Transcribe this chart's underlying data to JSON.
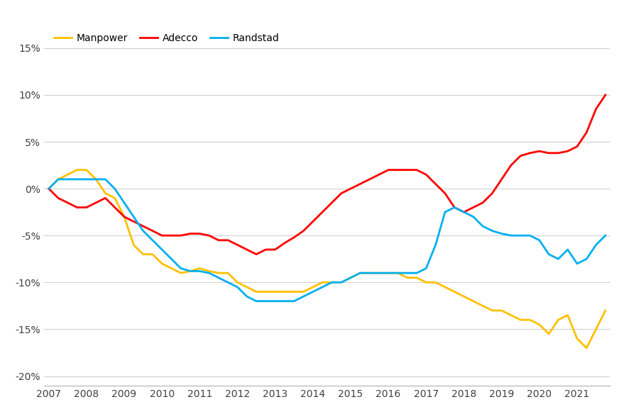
{
  "legend": [
    "Manpower",
    "Adecco",
    "Randstad"
  ],
  "colors": {
    "Manpower": "#FFC000",
    "Adecco": "#FF0000",
    "Randstad": "#00B0F0"
  },
  "x_labels": [
    "2007",
    "2008",
    "2009",
    "2010",
    "2011",
    "2012",
    "2013",
    "2014",
    "2015",
    "2016",
    "2017",
    "2018",
    "2019",
    "2020",
    "2021"
  ],
  "ylim": [
    -0.21,
    0.17
  ],
  "yticks": [
    -0.2,
    -0.15,
    -0.1,
    -0.05,
    0.0,
    0.05,
    0.1,
    0.15
  ],
  "Manpower": [
    0.0,
    0.01,
    0.015,
    0.02,
    0.02,
    0.01,
    -0.005,
    -0.01,
    -0.03,
    -0.06,
    -0.07,
    -0.07,
    -0.08,
    -0.085,
    -0.09,
    -0.088,
    -0.085,
    -0.088,
    -0.09,
    -0.09,
    -0.1,
    -0.105,
    -0.11,
    -0.11,
    -0.11,
    -0.11,
    -0.11,
    -0.11,
    -0.105,
    -0.1,
    -0.1,
    -0.1,
    -0.095,
    -0.09,
    -0.09,
    -0.09,
    -0.09,
    -0.09,
    -0.095,
    -0.095,
    -0.1,
    -0.1,
    -0.105,
    -0.11,
    -0.115,
    -0.12,
    -0.125,
    -0.13,
    -0.13,
    -0.135,
    -0.14,
    -0.14,
    -0.145,
    -0.155,
    -0.14,
    -0.135,
    -0.16,
    -0.17,
    -0.15,
    -0.13
  ],
  "Adecco": [
    0.0,
    -0.01,
    -0.015,
    -0.02,
    -0.02,
    -0.015,
    -0.01,
    -0.02,
    -0.03,
    -0.035,
    -0.04,
    -0.045,
    -0.05,
    -0.05,
    -0.05,
    -0.048,
    -0.048,
    -0.05,
    -0.055,
    -0.055,
    -0.06,
    -0.065,
    -0.07,
    -0.065,
    -0.065,
    -0.058,
    -0.052,
    -0.045,
    -0.035,
    -0.025,
    -0.015,
    -0.005,
    0.0,
    0.005,
    0.01,
    0.015,
    0.02,
    0.02,
    0.02,
    0.02,
    0.015,
    0.005,
    -0.005,
    -0.02,
    -0.025,
    -0.02,
    -0.015,
    -0.005,
    0.01,
    0.025,
    0.035,
    0.038,
    0.04,
    0.038,
    0.038,
    0.04,
    0.045,
    0.06,
    0.085,
    0.1
  ],
  "Randstad": [
    0.0,
    0.01,
    0.01,
    0.01,
    0.01,
    0.01,
    0.01,
    0.0,
    -0.015,
    -0.03,
    -0.045,
    -0.055,
    -0.065,
    -0.075,
    -0.085,
    -0.088,
    -0.088,
    -0.09,
    -0.095,
    -0.1,
    -0.105,
    -0.115,
    -0.12,
    -0.12,
    -0.12,
    -0.12,
    -0.12,
    -0.115,
    -0.11,
    -0.105,
    -0.1,
    -0.1,
    -0.095,
    -0.09,
    -0.09,
    -0.09,
    -0.09,
    -0.09,
    -0.09,
    -0.09,
    -0.085,
    -0.06,
    -0.025,
    -0.02,
    -0.025,
    -0.03,
    -0.04,
    -0.045,
    -0.048,
    -0.05,
    -0.05,
    -0.05,
    -0.055,
    -0.07,
    -0.075,
    -0.065,
    -0.08,
    -0.075,
    -0.06,
    -0.05
  ],
  "background_color": "#ffffff",
  "grid_color": "#d0d0d0",
  "line_width": 2.0
}
